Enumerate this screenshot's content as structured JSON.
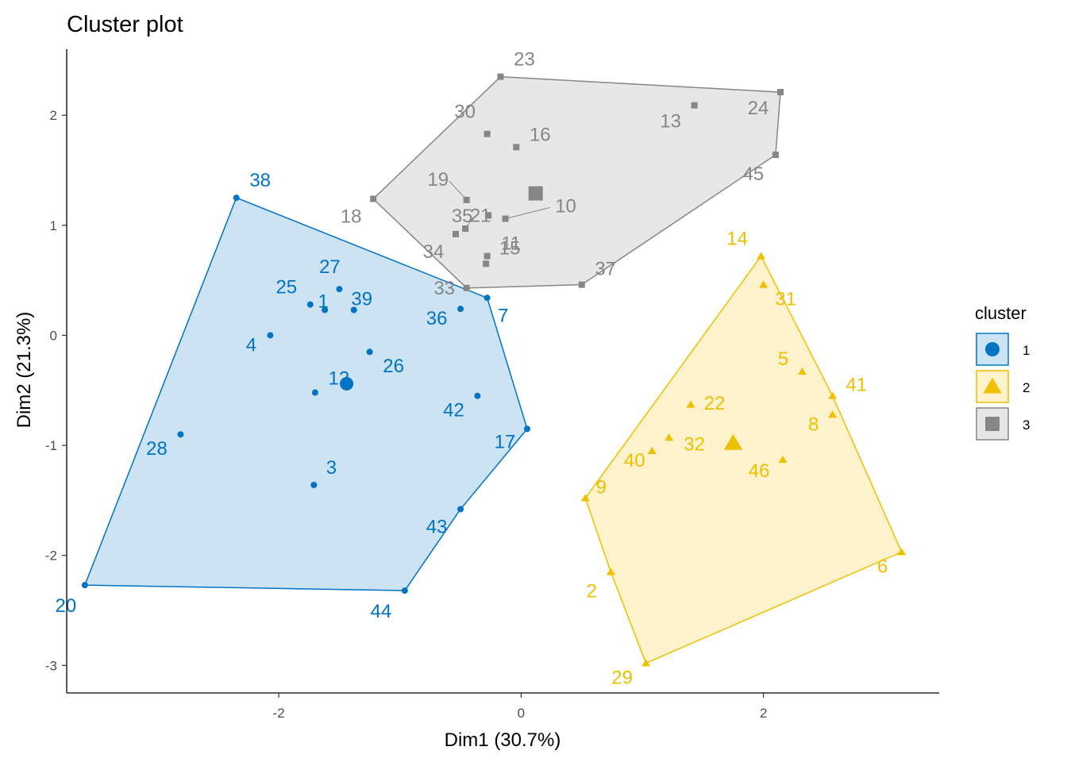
{
  "chart_data": {
    "type": "scatter",
    "title": "Cluster plot",
    "xlabel": "Dim1 (30.7%)",
    "ylabel": "Dim2 (21.3%)",
    "xlim": [
      -3.75,
      3.45
    ],
    "ylim": [
      -3.25,
      2.6
    ],
    "xticks": [
      -2,
      0,
      2
    ],
    "yticks": [
      -3,
      -2,
      -1,
      0,
      1,
      2
    ],
    "xtick_labels": [
      "-2",
      "0",
      "2"
    ],
    "ytick_labels": [
      "-3",
      "-2",
      "-1",
      "0",
      "1",
      "2"
    ],
    "grid": false,
    "legend": {
      "title": "cluster",
      "position": "right",
      "entries": [
        "1",
        "2",
        "3"
      ]
    },
    "series": [
      {
        "name": "1",
        "color": "#0073C2",
        "shape": "circle",
        "center": [
          -1.44,
          -0.44
        ],
        "hull": [
          "38",
          "7",
          "17",
          "43",
          "44",
          "20"
        ],
        "points": [
          {
            "label": "1",
            "x": -1.62,
            "y": 0.23
          },
          {
            "label": "3",
            "x": -1.71,
            "y": -1.36
          },
          {
            "label": "4",
            "x": -2.07,
            "y": 0.0
          },
          {
            "label": "7",
            "x": -0.28,
            "y": 0.34
          },
          {
            "label": "12",
            "x": -1.7,
            "y": -0.52
          },
          {
            "label": "17",
            "x": 0.05,
            "y": -0.85
          },
          {
            "label": "20",
            "x": -3.6,
            "y": -2.27
          },
          {
            "label": "25",
            "x": -1.74,
            "y": 0.28
          },
          {
            "label": "26",
            "x": -1.25,
            "y": -0.15
          },
          {
            "label": "27",
            "x": -1.5,
            "y": 0.42
          },
          {
            "label": "28",
            "x": -2.81,
            "y": -0.9
          },
          {
            "label": "36",
            "x": -0.5,
            "y": 0.24
          },
          {
            "label": "38",
            "x": -2.35,
            "y": 1.25
          },
          {
            "label": "39",
            "x": -1.38,
            "y": 0.23
          },
          {
            "label": "42",
            "x": -0.36,
            "y": -0.55
          },
          {
            "label": "43",
            "x": -0.5,
            "y": -1.58
          },
          {
            "label": "44",
            "x": -0.96,
            "y": -2.32
          }
        ]
      },
      {
        "name": "2",
        "color": "#EFC000",
        "shape": "triangle",
        "center": [
          1.75,
          -0.98
        ],
        "hull": [
          "14",
          "41",
          "6",
          "29",
          "2",
          "9"
        ],
        "points": [
          {
            "label": "2",
            "x": 0.74,
            "y": -2.15
          },
          {
            "label": "5",
            "x": 2.32,
            "y": -0.33
          },
          {
            "label": "6",
            "x": 3.14,
            "y": -1.97
          },
          {
            "label": "8",
            "x": 2.57,
            "y": -0.72
          },
          {
            "label": "9",
            "x": 0.53,
            "y": -1.48
          },
          {
            "label": "14",
            "x": 1.98,
            "y": 0.72
          },
          {
            "label": "22",
            "x": 1.4,
            "y": -0.63
          },
          {
            "label": "29",
            "x": 1.03,
            "y": -2.98
          },
          {
            "label": "31",
            "x": 2.0,
            "y": 0.46
          },
          {
            "label": "32",
            "x": 1.22,
            "y": -0.93
          },
          {
            "label": "40",
            "x": 1.08,
            "y": -1.05
          },
          {
            "label": "41",
            "x": 2.57,
            "y": -0.55
          },
          {
            "label": "46",
            "x": 2.16,
            "y": -1.13
          }
        ]
      },
      {
        "name": "3",
        "color": "#868686",
        "shape": "square",
        "center": [
          0.12,
          1.29
        ],
        "hull": [
          "23",
          "24",
          "45",
          "37",
          "33",
          "18"
        ],
        "points": [
          {
            "label": "10",
            "x": -0.13,
            "y": 1.06
          },
          {
            "label": "11",
            "x": -0.28,
            "y": 0.72
          },
          {
            "label": "13",
            "x": 1.43,
            "y": 2.09
          },
          {
            "label": "15",
            "x": -0.29,
            "y": 0.65
          },
          {
            "label": "16",
            "x": -0.04,
            "y": 1.71
          },
          {
            "label": "18",
            "x": -1.22,
            "y": 1.24
          },
          {
            "label": "19",
            "x": -0.45,
            "y": 1.23
          },
          {
            "label": "21",
            "x": -0.27,
            "y": 1.09
          },
          {
            "label": "23",
            "x": -0.17,
            "y": 2.35
          },
          {
            "label": "24",
            "x": 2.14,
            "y": 2.21
          },
          {
            "label": "30",
            "x": -0.28,
            "y": 1.83
          },
          {
            "label": "33",
            "x": -0.45,
            "y": 0.43
          },
          {
            "label": "34",
            "x": -0.54,
            "y": 0.92
          },
          {
            "label": "35",
            "x": -0.46,
            "y": 0.97
          },
          {
            "label": "37",
            "x": 0.5,
            "y": 0.46
          },
          {
            "label": "45",
            "x": 2.1,
            "y": 1.64
          }
        ]
      }
    ]
  }
}
